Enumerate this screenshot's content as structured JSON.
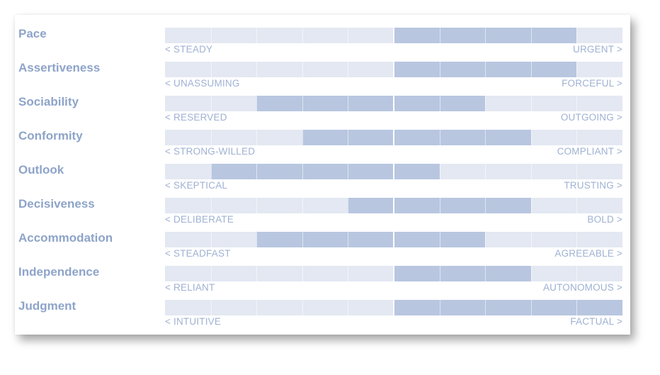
{
  "chart_data": {
    "type": "bar",
    "orientation": "horizontal-diverging",
    "center": 0,
    "xlim": [
      -50,
      50
    ],
    "rows": [
      {
        "label": "Pace",
        "left_pole": "< STEADY",
        "right_pole": "URGENT >",
        "start": 0,
        "end": 40
      },
      {
        "label": "Assertiveness",
        "left_pole": "< UNASSUMING",
        "right_pole": "FORCEFUL >",
        "start": 0,
        "end": 40
      },
      {
        "label": "Sociability",
        "left_pole": "< RESERVED",
        "right_pole": "OUTGOING >",
        "start": -30,
        "end": 20
      },
      {
        "label": "Conformity",
        "left_pole": "< STRONG-WILLED",
        "right_pole": "COMPLIANT >",
        "start": -20,
        "end": 30
      },
      {
        "label": "Outlook",
        "left_pole": "< SKEPTICAL",
        "right_pole": "TRUSTING >",
        "start": -40,
        "end": 10
      },
      {
        "label": "Decisiveness",
        "left_pole": "< DELIBERATE",
        "right_pole": "BOLD >",
        "start": -10,
        "end": 30
      },
      {
        "label": "Accommodation",
        "left_pole": "< STEADFAST",
        "right_pole": "AGREEABLE >",
        "start": -30,
        "end": 20
      },
      {
        "label": "Independence",
        "left_pole": "< RELIANT",
        "right_pole": "AUTONOMOUS >",
        "start": 0,
        "end": 30
      },
      {
        "label": "Judgment",
        "left_pole": "< INTUITIVE",
        "right_pole": "FACTUAL >",
        "start": 0,
        "end": 50
      }
    ],
    "colors": {
      "track": "#e3e8f2",
      "fill": "#b8c6e0",
      "label": "#8ea4c9",
      "pole": "#9fb1d3"
    }
  }
}
